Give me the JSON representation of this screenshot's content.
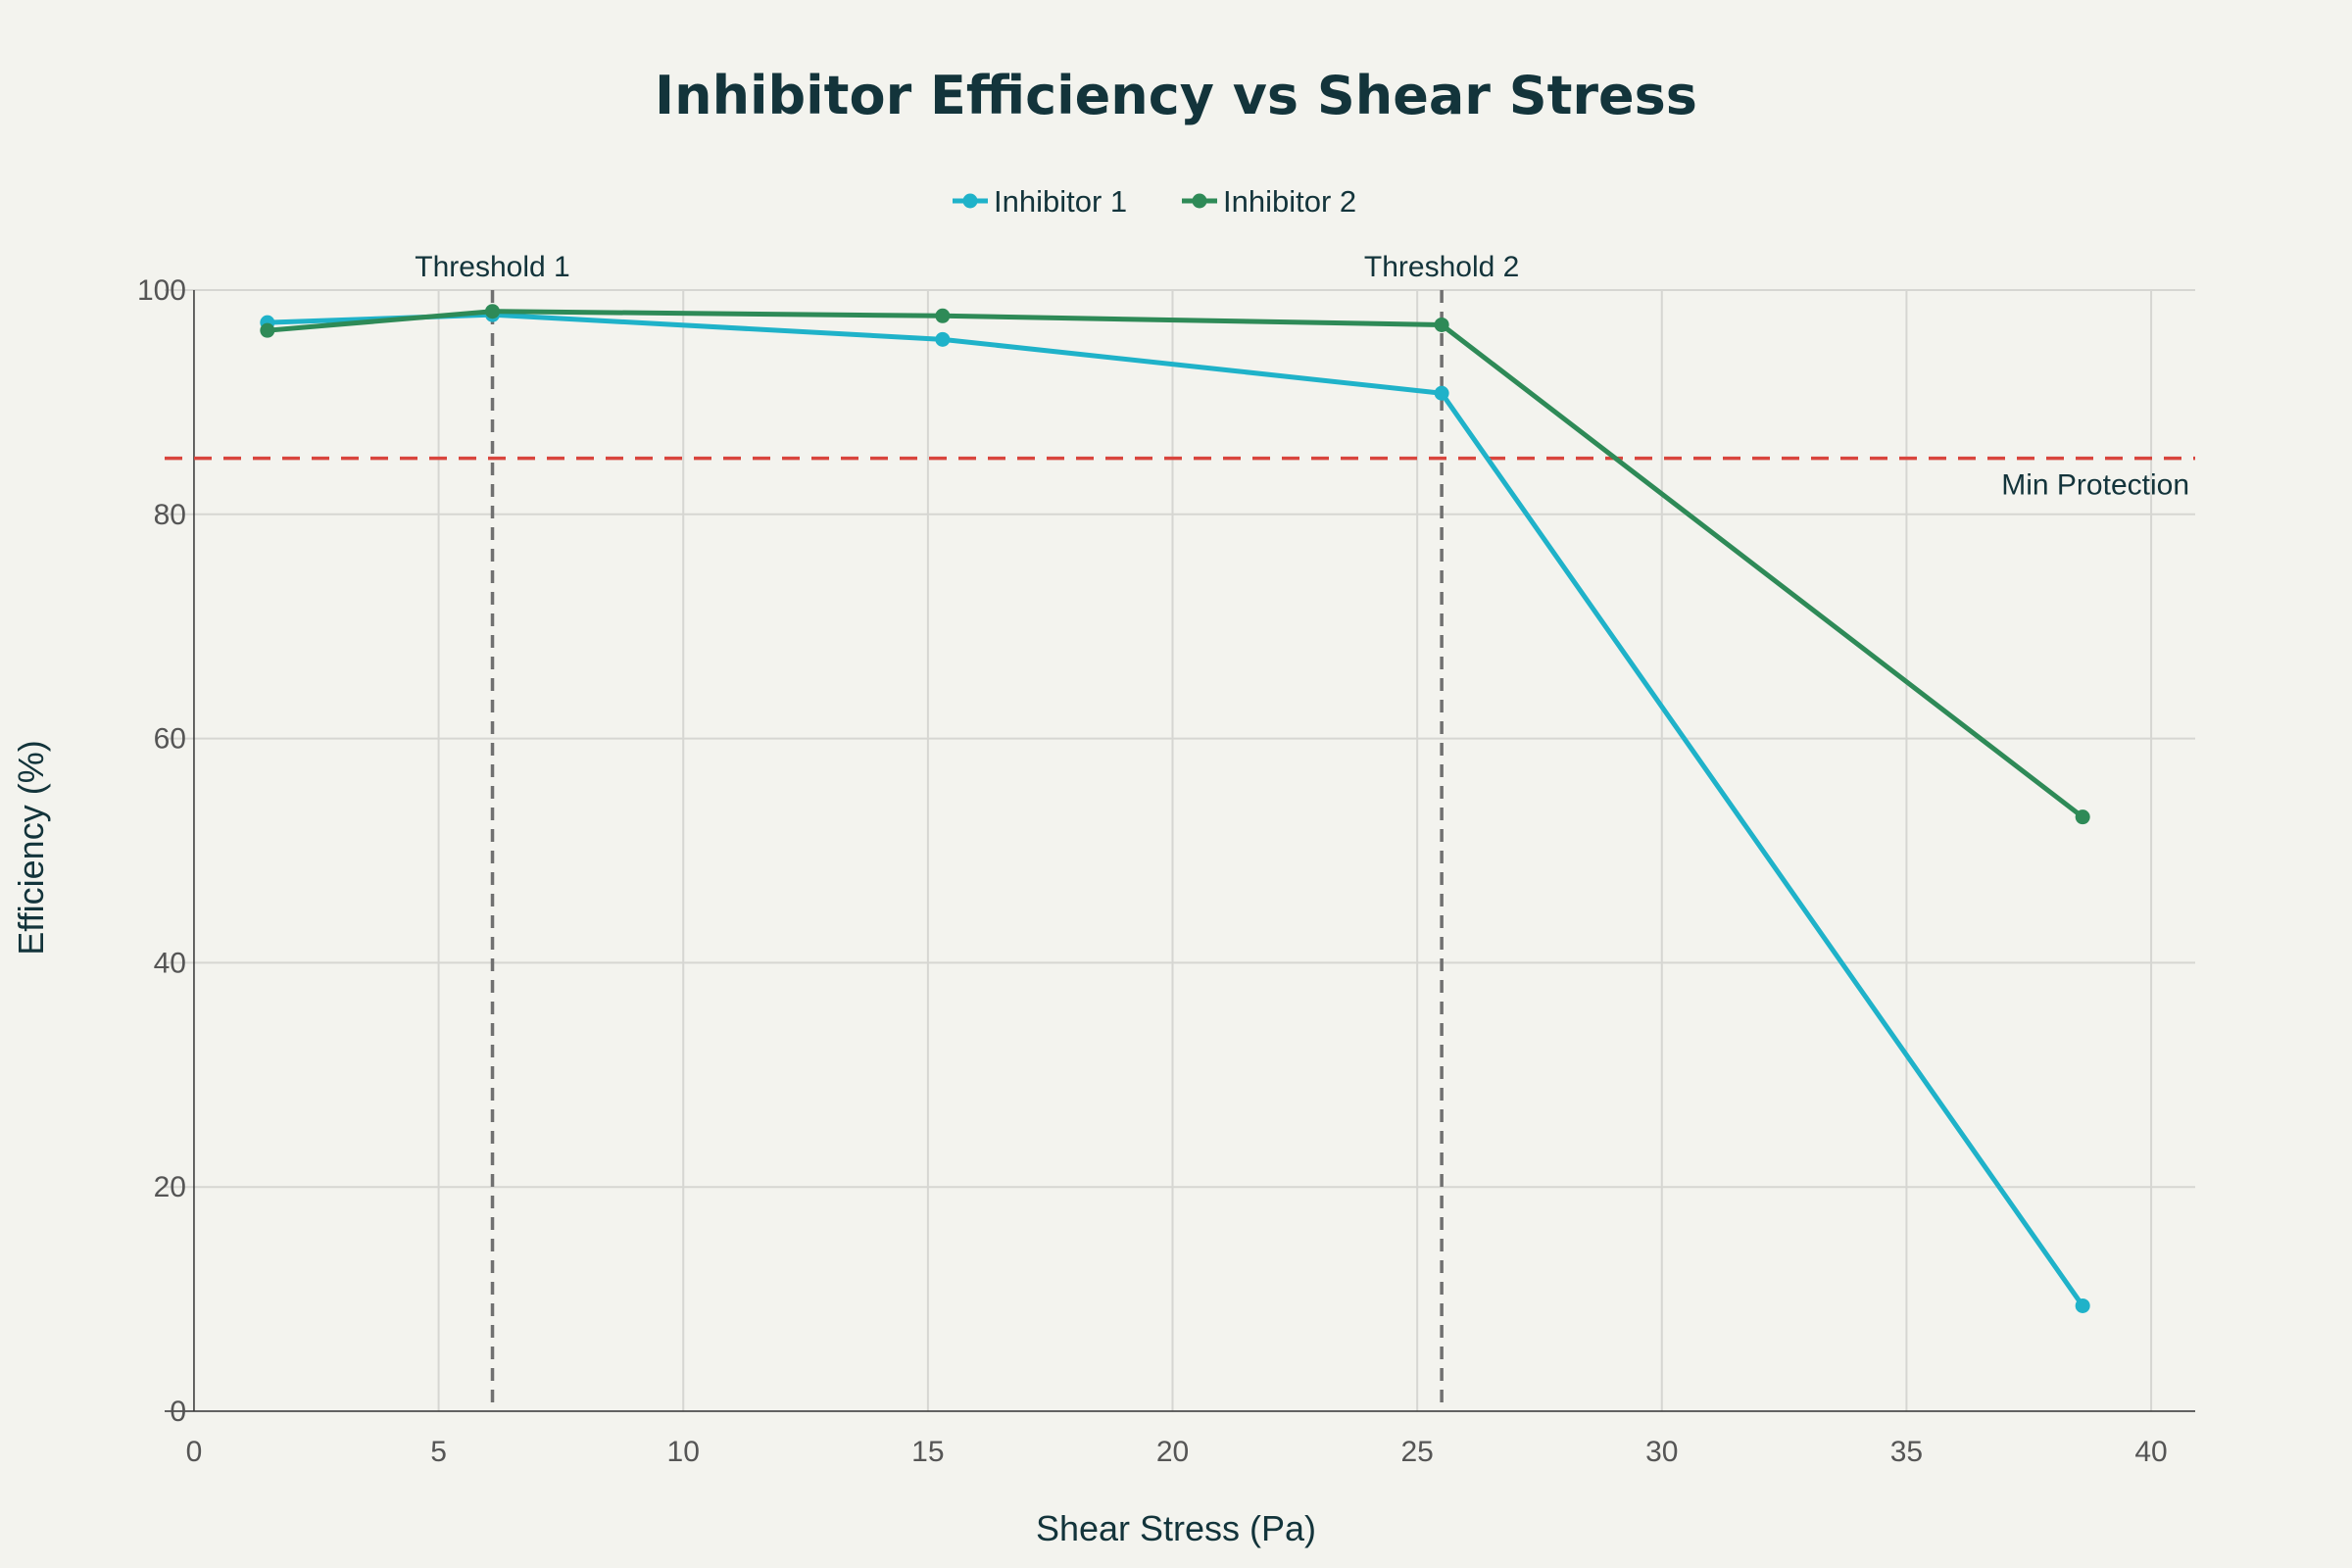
{
  "chart_data": {
    "type": "line",
    "title": "Inhibitor Efficiency vs Shear Stress",
    "xlabel": "Shear Stress (Pa)",
    "ylabel": "Efficiency (%)",
    "xlim": [
      -0.6,
      40.9
    ],
    "ylim": [
      0,
      100
    ],
    "x_ticks": [
      0,
      5,
      10,
      15,
      20,
      25,
      30,
      35,
      40
    ],
    "y_ticks": [
      0,
      20,
      40,
      60,
      80,
      100
    ],
    "grid": true,
    "legend_position": "top-center",
    "series": [
      {
        "name": "Inhibitor 1",
        "color": "#1fb2c9",
        "x": [
          1.5,
          6.1,
          15.3,
          25.5,
          38.6
        ],
        "y": [
          97.1,
          97.8,
          95.6,
          90.8,
          9.4
        ]
      },
      {
        "name": "Inhibitor 2",
        "color": "#2e8a57",
        "x": [
          1.5,
          6.1,
          15.3,
          25.5,
          38.6
        ],
        "y": [
          96.4,
          98.1,
          97.7,
          96.9,
          53.0
        ]
      }
    ],
    "reference_lines": [
      {
        "orientation": "vertical",
        "value": 6.1,
        "label": "Threshold 1",
        "color": "#707070"
      },
      {
        "orientation": "vertical",
        "value": 25.5,
        "label": "Threshold 2",
        "color": "#707070"
      },
      {
        "orientation": "horizontal",
        "value": 85,
        "label": "Min Protection",
        "color": "#d9453d"
      }
    ]
  }
}
